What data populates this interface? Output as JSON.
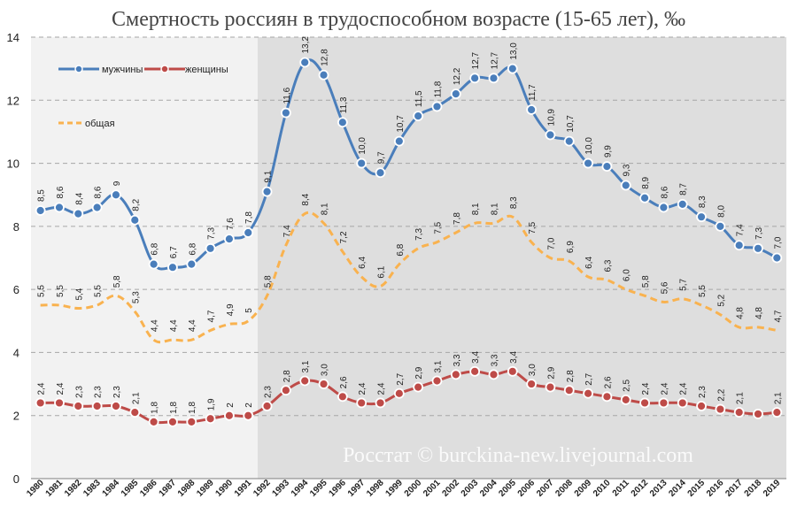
{
  "chart_data": {
    "type": "line",
    "title": "Смертность россиян в трудоспособном возрасте (15-65 лет), ‰",
    "xlabel": "",
    "ylabel": "",
    "ylim": [
      0,
      14
    ],
    "yticks": [
      "0",
      "2",
      "4",
      "6",
      "8",
      "10",
      "12",
      "14"
    ],
    "grid": true,
    "x": [
      "1980",
      "1981",
      "1982",
      "1983",
      "1984",
      "1985",
      "1986",
      "1987",
      "1988",
      "1989",
      "1990",
      "1991",
      "1992",
      "1993",
      "1994",
      "1995",
      "1996",
      "1997",
      "1998",
      "1999",
      "2000",
      "2001",
      "2002",
      "2003",
      "2004",
      "2005",
      "2006",
      "2007",
      "2008",
      "2009",
      "2010",
      "2011",
      "2012",
      "2013",
      "2014",
      "2015",
      "2016",
      "2017",
      "2018",
      "2019"
    ],
    "series": [
      {
        "name": "мужчины",
        "color": "#4a7ebb",
        "style": "solid-markers",
        "values": [
          8.5,
          8.6,
          8.4,
          8.6,
          9,
          8.2,
          6.8,
          6.7,
          6.8,
          7.3,
          7.6,
          7.8,
          9.1,
          11.6,
          13.2,
          12.8,
          11.3,
          10.0,
          9.7,
          10.7,
          11.5,
          11.8,
          12.2,
          12.7,
          12.7,
          13.0,
          11.7,
          10.9,
          10.7,
          10.0,
          9.9,
          9.3,
          8.9,
          8.6,
          8.7,
          8.3,
          8.0,
          7.4,
          7.3,
          7.0
        ],
        "labels": [
          "8,5",
          "8,6",
          "8,4",
          "8,6",
          "9",
          "8,2",
          "6,8",
          "6,7",
          "6,8",
          "7,3",
          "7,6",
          "7,8",
          "9,1",
          "11,6",
          "13,2",
          "12,8",
          "11,3",
          "10,0",
          "9,7",
          "10,7",
          "11,5",
          "11,8",
          "12,2",
          "12,7",
          "12,7",
          "13,0",
          "11,7",
          "10,9",
          "10,7",
          "10,0",
          "9,9",
          "9,3",
          "8,9",
          "8,6",
          "8,7",
          "8,3",
          "8,0",
          "7,4",
          "7,3",
          "7,0"
        ]
      },
      {
        "name": "женщины",
        "color": "#be4b48",
        "style": "solid-markers",
        "values": [
          2.4,
          2.4,
          2.3,
          2.3,
          2.3,
          2.1,
          1.8,
          1.8,
          1.8,
          1.9,
          2,
          2,
          2.3,
          2.8,
          3.1,
          3.0,
          2.6,
          2.4,
          2.4,
          2.7,
          2.9,
          3.1,
          3.3,
          3.4,
          3.3,
          3.4,
          3.0,
          2.9,
          2.8,
          2.7,
          2.6,
          2.5,
          2.4,
          2.4,
          2.4,
          2.3,
          2.2,
          2.1,
          2.05,
          2.1
        ],
        "labels": [
          "2,4",
          "2,4",
          "2,3",
          "2,3",
          "2,3",
          "2,1",
          "1,8",
          "1,8",
          "1,8",
          "1,9",
          "2",
          "2",
          "2,3",
          "2,8",
          "3,1",
          "3,0",
          "2,6",
          "2,4",
          "2,4",
          "2,7",
          "2,9",
          "3,1",
          "3,3",
          "3,4",
          "3,3",
          "3,4",
          "3,0",
          "2,9",
          "2,8",
          "2,7",
          "2,6",
          "2,5",
          "2,4",
          "2,4",
          "2,4",
          "2,3",
          "2,2",
          "2,1",
          "",
          "2,1"
        ]
      },
      {
        "name": "общая",
        "color": "#f9b24f",
        "style": "dashed",
        "values": [
          5.5,
          5.5,
          5.4,
          5.5,
          5.8,
          5.3,
          4.4,
          4.4,
          4.4,
          4.7,
          4.9,
          5,
          5.8,
          7.4,
          8.4,
          8.1,
          7.2,
          6.4,
          6.1,
          6.8,
          7.3,
          7.5,
          7.8,
          8.1,
          8.1,
          8.3,
          7.5,
          7.0,
          6.9,
          6.4,
          6.3,
          6.0,
          5.8,
          5.6,
          5.7,
          5.5,
          5.2,
          4.8,
          4.8,
          4.7
        ],
        "labels": [
          "5,5",
          "5,5",
          "5,4",
          "5,5",
          "5,8",
          "5,3",
          "4,4",
          "4,4",
          "4,4",
          "4,7",
          "4,9",
          "5",
          "5,8",
          "7,4",
          "8,4",
          "8,1",
          "7,2",
          "6,4",
          "6,1",
          "6,8",
          "7,3",
          "7,5",
          "7,8",
          "8,1",
          "8,1",
          "8,3",
          "7,5",
          "7,0",
          "6,9",
          "6,4",
          "6,3",
          "6,0",
          "5,8",
          "5,6",
          "5,7",
          "5,5",
          "5,2",
          "4,8",
          "4,8",
          "4,7"
        ]
      }
    ],
    "shaded_from": "1992",
    "watermark": "Росстат © burckina-new.livejournal.com"
  },
  "colors": {
    "background_left": "#f2f2f2",
    "background_right": "#dedede",
    "grid": "#a6a6a6"
  }
}
